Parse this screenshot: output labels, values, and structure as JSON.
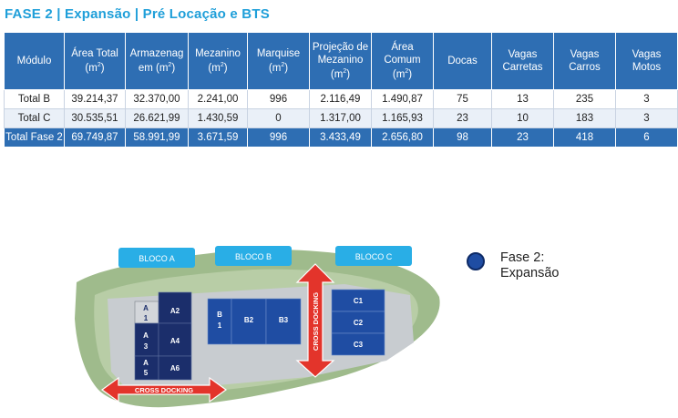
{
  "title": "FASE 2 | Expansão | Pré Locação e BTS",
  "table": {
    "headers": [
      {
        "l1": "Módulo",
        "l2": ""
      },
      {
        "l1": "Área Total",
        "l2": "(m²)"
      },
      {
        "l1": "Armazenag",
        "l2": "em (m²)"
      },
      {
        "l1": "Mezanino",
        "l2": "(m²)"
      },
      {
        "l1": "Marquise",
        "l2": "(m²)"
      },
      {
        "l1": "Projeção de",
        "l2": "Mezanino",
        "l3": "(m²)"
      },
      {
        "l1": "Área",
        "l2": "Comum",
        "l3": "(m²)"
      },
      {
        "l1": "Docas",
        "l2": ""
      },
      {
        "l1": "Vagas",
        "l2": "Carretas"
      },
      {
        "l1": "Vagas",
        "l2": "Carros"
      },
      {
        "l1": "Vagas",
        "l2": "Motos"
      }
    ],
    "rows": [
      [
        "Total B",
        "39.214,37",
        "32.370,00",
        "2.241,00",
        "996",
        "2.116,49",
        "1.490,87",
        "75",
        "13",
        "235",
        "3"
      ],
      [
        "Total C",
        "30.535,51",
        "26.621,99",
        "1.430,59",
        "0",
        "1.317,00",
        "1.165,93",
        "23",
        "10",
        "183",
        "3"
      ],
      [
        "Total Fase 2",
        "69.749,87",
        "58.991,99",
        "3.671,59",
        "996",
        "3.433,49",
        "2.656,80",
        "98",
        "23",
        "418",
        "6"
      ]
    ]
  },
  "map": {
    "bloco_a": "BLOCO A",
    "bloco_b": "BLOCO B",
    "bloco_c": "BLOCO C",
    "cross_docking": "CROSS DOCKING",
    "a1_l1": "A",
    "a1_l2": "1",
    "a2": "A2",
    "a3_l1": "A",
    "a3_l2": "3",
    "a4": "A4",
    "a5_l1": "A",
    "a5_l2": "5",
    "a6": "A6",
    "b1_l1": "B",
    "b1_l2": "1",
    "b2": "B2",
    "b3": "B3",
    "c1": "C1",
    "c2": "C2",
    "c3": "C3",
    "colors": {
      "phase2": "#1f4da3",
      "callout": "#29aee6",
      "arrow": "#e3342b",
      "terrain": "#9cb98a"
    }
  },
  "legend": {
    "line1": "Fase 2:",
    "line2": "Expansão"
  }
}
